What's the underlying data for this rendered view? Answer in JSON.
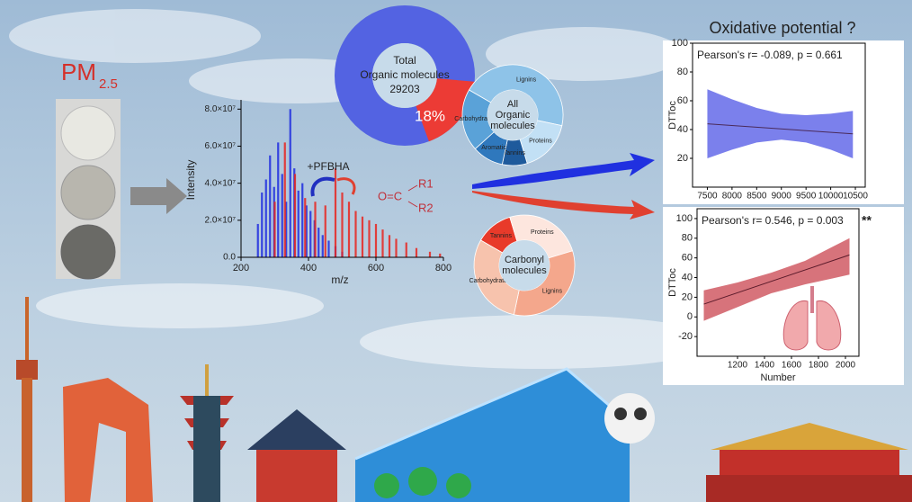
{
  "pm_label": {
    "main": "PM",
    "sub": "2.5"
  },
  "spectrum": {
    "xlabel": "m/z",
    "ylabel": "Intensity",
    "xlim": [
      200,
      800
    ],
    "ylim": [
      0,
      85000000
    ],
    "xticks": [
      200,
      400,
      600,
      800
    ],
    "yticks": [
      {
        "value": 0,
        "label": "0.0"
      },
      {
        "value": 20000000,
        "label": "2.0×10⁷"
      },
      {
        "value": 40000000,
        "label": "4.0×10⁷"
      },
      {
        "value": 60000000,
        "label": "6.0×10⁷"
      },
      {
        "value": 80000000,
        "label": "8.0×10⁷"
      }
    ],
    "series": [
      {
        "color": "#1f2de0",
        "x": [
          250,
          262,
          274,
          286,
          298,
          310,
          322,
          334,
          346,
          358,
          370,
          382,
          394,
          406,
          418,
          430,
          442,
          460,
          480,
          500
        ],
        "values": [
          18000000,
          35000000,
          42000000,
          55000000,
          38000000,
          62000000,
          45000000,
          30000000,
          80000000,
          48000000,
          36000000,
          40000000,
          28000000,
          25000000,
          20000000,
          16000000,
          12000000,
          9000000,
          6000000,
          3000000
        ]
      },
      {
        "color": "#e8251f",
        "x": [
          300,
          330,
          360,
          390,
          420,
          450,
          480,
          500,
          520,
          540,
          560,
          580,
          600,
          620,
          640,
          660,
          690,
          720,
          760,
          790
        ],
        "values": [
          30000000,
          62000000,
          45000000,
          32000000,
          30000000,
          28000000,
          48000000,
          35000000,
          30000000,
          25000000,
          22000000,
          20000000,
          18000000,
          15000000,
          12000000,
          10000000,
          8000000,
          5000000,
          3000000,
          2000000
        ]
      }
    ],
    "reagent": "+PFBHA",
    "structure": {
      "core": "O=C",
      "r1": "R1",
      "r2": "R2"
    }
  },
  "donut_total": {
    "lines": [
      "Total",
      "Organic molecules"
    ],
    "count": 29203,
    "share": {
      "value": 18,
      "label": "18%"
    }
  },
  "donut_all": {
    "center": [
      "All",
      "Organic",
      "molecules"
    ],
    "categories": [
      "Lignins",
      "Proteins",
      "Tannins",
      "Aromatic",
      "Carbohydrates"
    ],
    "values": [
      45,
      17,
      8,
      10,
      20
    ],
    "colors": [
      "#8ec3e8",
      "#c2e0f5",
      "#1e5a9c",
      "#2f78bd",
      "#5aa2d8"
    ]
  },
  "donut_carbonyl": {
    "center": [
      "Carbonyl",
      "molecules"
    ],
    "categories": [
      "Tannins",
      "Proteins",
      "Lignins",
      "Carbohydrates"
    ],
    "values": [
      12,
      25,
      33,
      30
    ],
    "colors": [
      "#e83a2a",
      "#fde6de",
      "#f4a78c",
      "#f7c3ad"
    ]
  },
  "op_title": "Oxidative potential ?",
  "plots": [
    {
      "ylabel": "DTToc",
      "annotation": "Pearson's r= -0.089, p = 0.661",
      "xlim": [
        7200,
        10700
      ],
      "ylim": [
        0,
        100
      ],
      "xticks": [
        7500,
        8000,
        8500,
        9000,
        9500,
        10000,
        10500
      ],
      "yticks": [
        20,
        40,
        60,
        80,
        100
      ],
      "fit": {
        "color": "#4a2a5a",
        "x": [
          7500,
          10450
        ],
        "values": [
          44,
          37
        ]
      },
      "band": {
        "color": "#4f55e6",
        "x": [
          7500,
          8000,
          8500,
          9000,
          9500,
          10000,
          10450
        ],
        "upper": [
          68,
          61,
          55,
          51,
          50,
          51,
          53
        ],
        "lower": [
          20,
          26,
          31,
          33,
          31,
          26,
          20
        ]
      }
    },
    {
      "ylabel": "DTToc",
      "xlabel": "Number",
      "annotation": "Pearson's r= 0.546, p = 0.003",
      "significance": "**",
      "xlim": [
        900,
        2100
      ],
      "ylim": [
        -40,
        110
      ],
      "xticks": [
        1200,
        1400,
        1600,
        1800,
        2000
      ],
      "yticks": [
        -20,
        0,
        20,
        40,
        60,
        80,
        100
      ],
      "fit": {
        "color": "#5a1a2a",
        "x": [
          950,
          2030
        ],
        "values": [
          13,
          63
        ]
      },
      "band": {
        "color": "#c9444f",
        "x": [
          950,
          1200,
          1450,
          1700,
          1900,
          2030
        ],
        "upper": [
          27,
          35,
          45,
          57,
          71,
          80
        ],
        "lower": [
          -4,
          10,
          24,
          33,
          39,
          43
        ]
      }
    }
  ]
}
